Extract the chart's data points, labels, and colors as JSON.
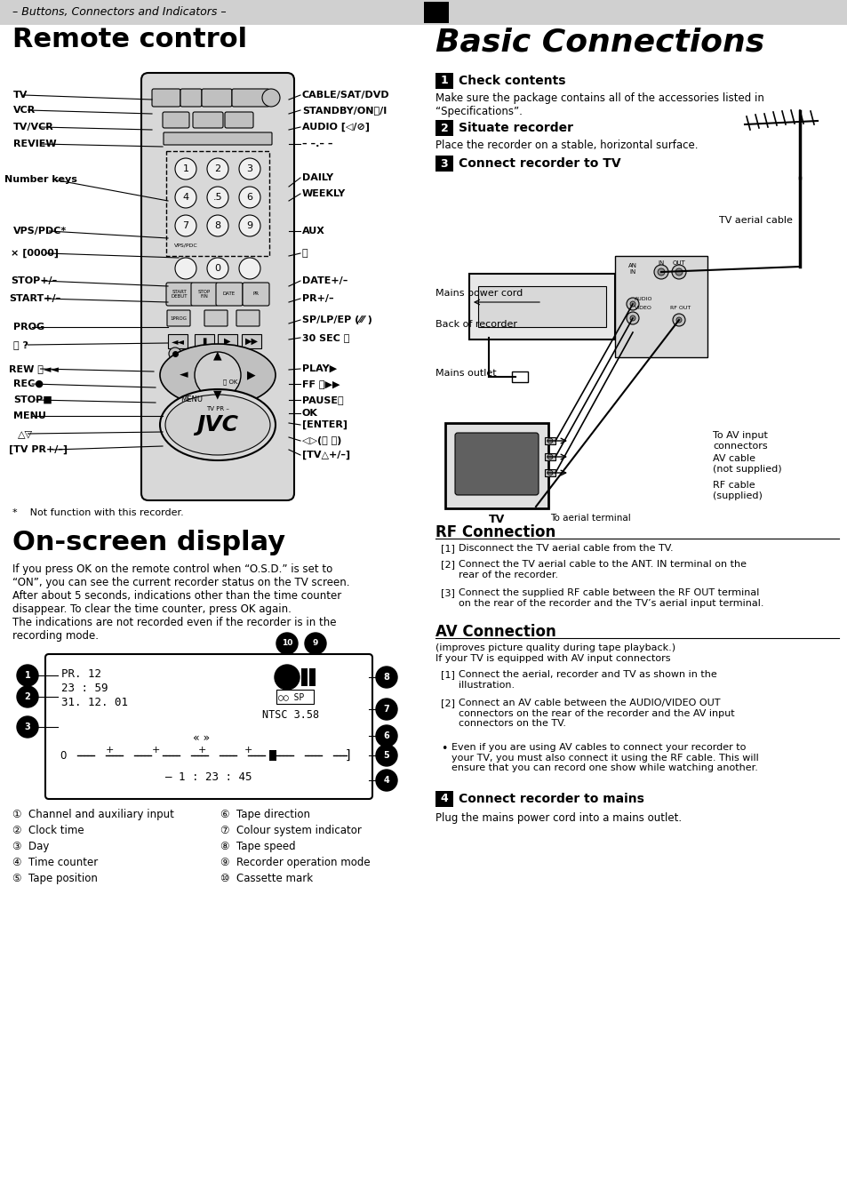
{
  "page_bg": "#ffffff",
  "header_bg": "#d0d0d0",
  "header_text_left": "– Buttons, Connectors and Indicators –",
  "left_title": "Remote control",
  "right_title": "Basic Connections",
  "section1_num": "1",
  "section1_head": "Check contents",
  "section1_body": "Make sure the package contains all of the accessories listed in\n“Specifications”.",
  "section2_num": "2",
  "section2_head": "Situate recorder",
  "section2_body": "Place the recorder on a stable, horizontal surface.",
  "section3_num": "3",
  "section3_head": "Connect recorder to TV",
  "tv_aerial_label": "TV aerial cable",
  "mains_cord_label": "Mains power cord",
  "back_recorder_label": "Back of recorder",
  "mains_outlet_label": "Mains outlet",
  "av_input_label": "To AV input\nconnectors",
  "av_cable_label": "AV cable\n(not supplied)",
  "rf_cable_label": "RF cable\n(supplied)",
  "aerial_terminal_label": "To aerial terminal",
  "tv_label": "TV",
  "rf_head": "RF Connection",
  "rf_items": [
    "Disconnect the TV aerial cable from the TV.",
    "Connect the TV aerial cable to the ANT. IN terminal on the\nrear of the recorder.",
    "Connect the supplied RF cable between the RF OUT terminal\non the rear of the recorder and the TV’s aerial input terminal."
  ],
  "av_head": "AV Connection",
  "av_intro": "(improves picture quality during tape playback.)\nIf your TV is equipped with AV input connectors",
  "av_items": [
    "Connect the aerial, recorder and TV as shown in the\nillustration.",
    "Connect an AV cable between the AUDIO/VIDEO OUT\nconnectors on the rear of the recorder and the AV input\nconnectors on the TV."
  ],
  "av_bullet": "Even if you are using AV cables to connect your recorder to\nyour TV, you must also connect it using the RF cable. This will\nensure that you can record one show while watching another.",
  "section4_num": "4",
  "section4_head": "Connect recorder to mains",
  "section4_body": "Plug the mains power cord into a mains outlet.",
  "footnote": "*    Not function with this recorder.",
  "osd_title": "On-screen display",
  "osd_body1": "If you press OK on the remote control when “O.S.D.” is set to",
  "osd_body2": "“ON”, you can see the current recorder status on the TV screen.",
  "osd_body3": "After about 5 seconds, indications other than the time counter",
  "osd_body4": "disappear. To clear the time counter, press OK again.",
  "osd_body5": "The indications are not recorded even if the recorder is in the",
  "osd_body6": "recording mode.",
  "osd_items_col1": [
    "①  Channel and auxiliary input",
    "②  Clock time",
    "③  Day",
    "④  Time counter",
    "⑤  Tape position"
  ],
  "osd_items_col2": [
    "⑥  Tape direction",
    "⑦  Colour system indicator",
    "⑧  Tape speed",
    "⑨  Recorder operation mode",
    "⑩  Cassette mark"
  ]
}
